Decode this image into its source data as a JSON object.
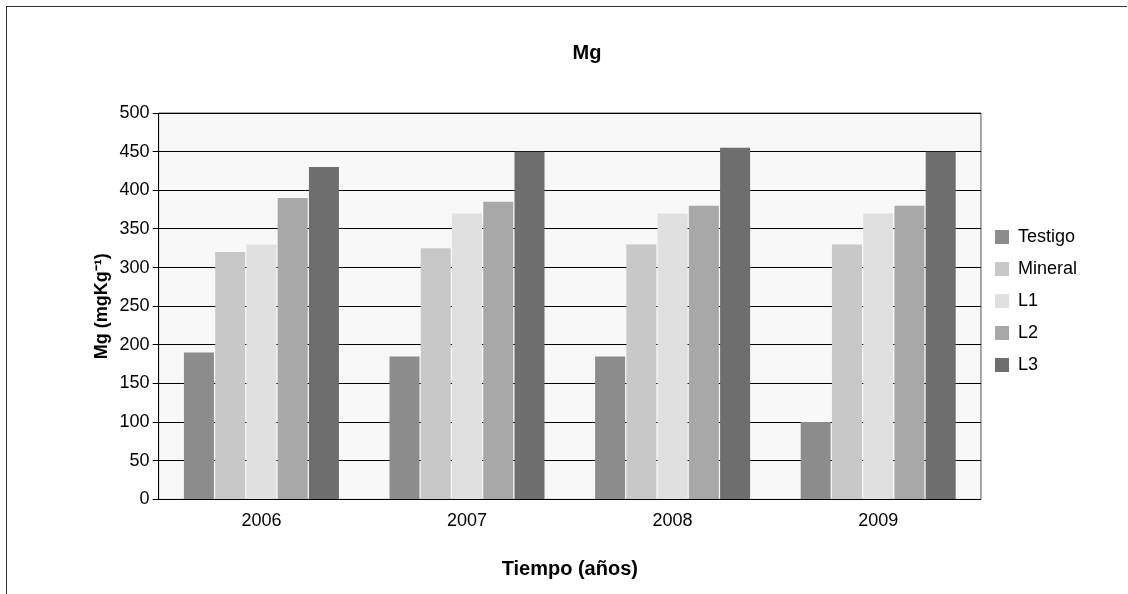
{
  "chart_data": {
    "type": "bar",
    "title": "Mg",
    "xlabel": "Tiempo (años)",
    "ylabel": "Mg (mgKg⁻¹)",
    "categories": [
      "2006",
      "2007",
      "2008",
      "2009"
    ],
    "series": [
      {
        "name": "Testigo",
        "color": "#8c8c8c",
        "values": [
          190,
          185,
          185,
          100
        ]
      },
      {
        "name": "Mineral",
        "color": "#c8c8c8",
        "values": [
          320,
          325,
          330,
          330
        ]
      },
      {
        "name": "L1",
        "color": "#e0e0e0",
        "values": [
          330,
          370,
          370,
          370
        ]
      },
      {
        "name": "L2",
        "color": "#a8a8a8",
        "values": [
          390,
          385,
          380,
          380
        ]
      },
      {
        "name": "L3",
        "color": "#6e6e6e",
        "values": [
          430,
          450,
          455,
          450
        ]
      }
    ],
    "ylim": [
      0,
      500
    ],
    "yticks": [
      0,
      50,
      100,
      150,
      200,
      250,
      300,
      350,
      400,
      450,
      500
    ],
    "grid": "y",
    "legend": "right"
  }
}
